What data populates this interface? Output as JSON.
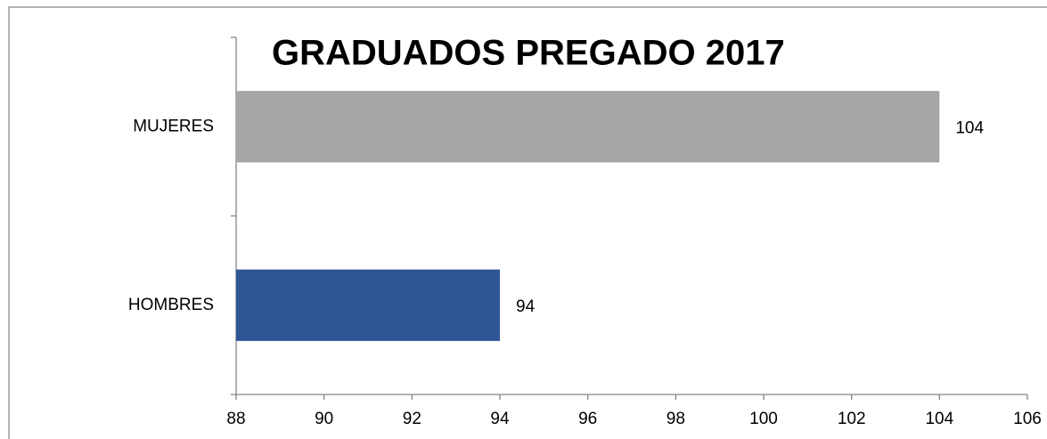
{
  "chart_data": {
    "type": "hbar",
    "title": "GRADUADOS PREGADO 2017",
    "categories": [
      "MUJERES",
      "HOMBRES"
    ],
    "values": [
      104,
      94
    ],
    "colors": [
      "#a6a6a6",
      "#2f5597"
    ],
    "xlim": [
      88,
      106
    ],
    "xticks": [
      88,
      90,
      92,
      94,
      96,
      98,
      100,
      102,
      104,
      106
    ],
    "grid": false
  }
}
